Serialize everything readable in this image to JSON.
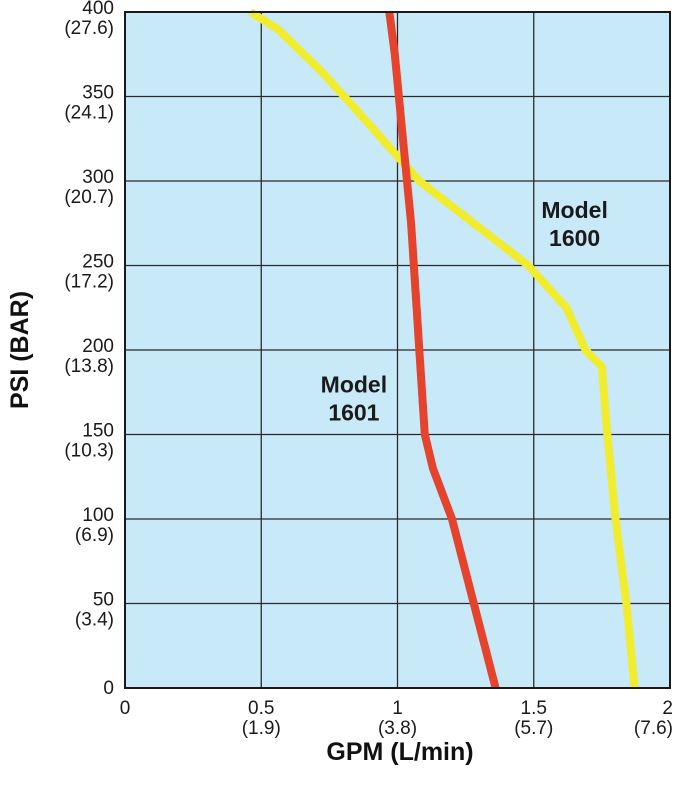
{
  "chart_data": {
    "type": "line",
    "xlabel": "GPM (L/min)",
    "ylabel": "PSI (BAR)",
    "xlim": [
      0,
      2
    ],
    "ylim": [
      0,
      400
    ],
    "grid": true,
    "background_color": "#c8e9f8",
    "x_ticks": [
      {
        "value": 0,
        "label": "0",
        "sub": ""
      },
      {
        "value": 0.5,
        "label": "0.5",
        "sub": "(1.9)"
      },
      {
        "value": 1,
        "label": "1",
        "sub": "(3.8)"
      },
      {
        "value": 1.5,
        "label": "1.5",
        "sub": "(5.7)"
      },
      {
        "value": 2,
        "label": "2",
        "sub": "(7.6)"
      }
    ],
    "y_ticks": [
      {
        "value": 0,
        "label": "0",
        "sub": ""
      },
      {
        "value": 50,
        "label": "50",
        "sub": "(3.4)"
      },
      {
        "value": 100,
        "label": "100",
        "sub": "(6.9)"
      },
      {
        "value": 150,
        "label": "150",
        "sub": "(10.3)"
      },
      {
        "value": 200,
        "label": "200",
        "sub": "(13.8)"
      },
      {
        "value": 250,
        "label": "250",
        "sub": "(17.2)"
      },
      {
        "value": 300,
        "label": "300",
        "sub": "(20.7)"
      },
      {
        "value": 350,
        "label": "350",
        "sub": "(24.1)"
      },
      {
        "value": 400,
        "label": "400",
        "sub": "(27.6)"
      }
    ],
    "series": [
      {
        "label_line1": "Model",
        "label_line2": "1600",
        "label_at": [
          1.65,
          278
        ],
        "color": "#f1ec2e",
        "points": [
          [
            1.87,
            0
          ],
          [
            1.84,
            50
          ],
          [
            1.8,
            100
          ],
          [
            1.77,
            150
          ],
          [
            1.75,
            190
          ],
          [
            1.69,
            200
          ],
          [
            1.62,
            225
          ],
          [
            1.48,
            250
          ],
          [
            1.28,
            275
          ],
          [
            1.08,
            300
          ],
          [
            0.86,
            340
          ],
          [
            0.72,
            365
          ],
          [
            0.56,
            390
          ],
          [
            0.46,
            400
          ]
        ]
      },
      {
        "label_line1": "Model",
        "label_line2": "1601",
        "label_at": [
          0.84,
          175
        ],
        "color": "#e5432b",
        "points": [
          [
            1.36,
            0
          ],
          [
            1.28,
            50
          ],
          [
            1.2,
            100
          ],
          [
            1.13,
            130
          ],
          [
            1.1,
            150
          ],
          [
            1.08,
            200
          ],
          [
            1.07,
            225
          ],
          [
            1.05,
            275
          ],
          [
            1.02,
            325
          ],
          [
            0.99,
            375
          ],
          [
            0.97,
            400
          ]
        ]
      }
    ]
  }
}
